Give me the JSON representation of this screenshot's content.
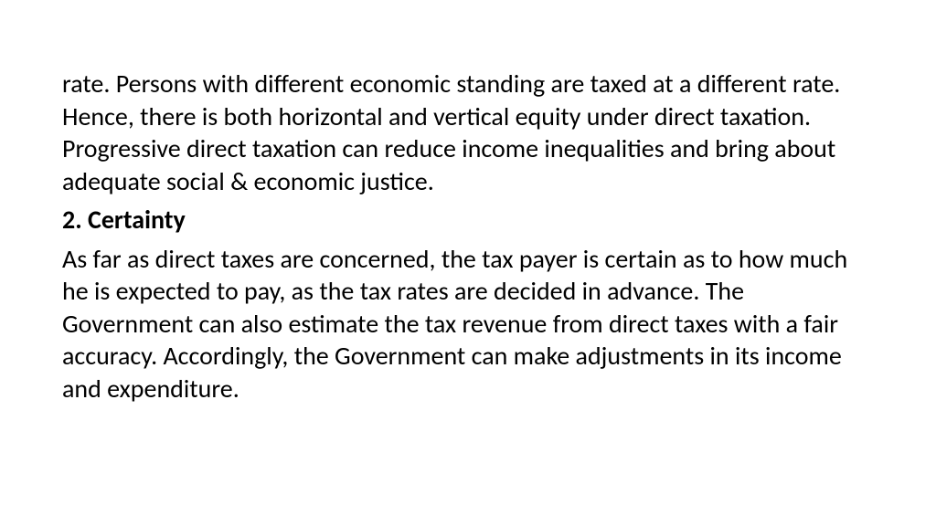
{
  "content": {
    "paragraph1": "rate. Persons with different economic standing are taxed at a different rate. Hence, there is both horizontal and vertical equity under direct taxation. Progressive direct taxation can reduce income inequalities and bring about adequate social & economic justice.",
    "heading": "2. Certainty",
    "paragraph2": "As far as direct taxes are concerned, the tax payer is certain as to how much he is expected to pay, as the tax rates are decided in advance. The Government can also estimate the tax revenue from direct taxes with a fair accuracy. Accordingly, the Government can make adjustments in its income and expenditure."
  },
  "styling": {
    "background_color": "#ffffff",
    "text_color": "#000000",
    "font_family": "Calibri, 'Segoe UI', Arial, sans-serif",
    "body_font_size": 28,
    "heading_font_weight": 700,
    "body_font_weight": 400,
    "line_height": 1.27
  }
}
